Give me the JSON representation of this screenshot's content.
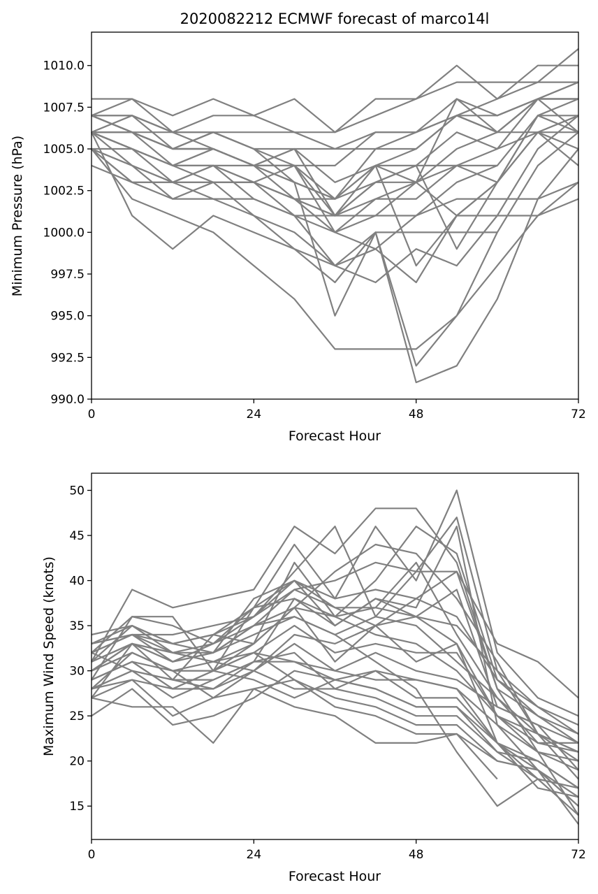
{
  "chart_data": [
    {
      "type": "line",
      "title": "2020082212 ECMWF forecast of marco14l",
      "xlabel": "Forecast Hour",
      "ylabel": "Minimum Pressure (hPa)",
      "xlim": [
        0,
        72
      ],
      "ylim": [
        990,
        1012
      ],
      "xticks": [
        0,
        24,
        48,
        72
      ],
      "xtick_labels": [
        "0",
        "24",
        "48",
        "72"
      ],
      "yticks": [
        990,
        992.5,
        995,
        997.5,
        1000,
        1002.5,
        1005,
        1007.5,
        1010
      ],
      "ytick_labels": [
        "990.0",
        "992.5",
        "995.0",
        "997.5",
        "1000.0",
        "1002.5",
        "1005.0",
        "1007.5",
        "1010.0"
      ],
      "line_color": "#808080",
      "grid": false,
      "x": [
        0,
        6,
        12,
        18,
        24,
        30,
        36,
        42,
        48,
        54,
        60,
        66,
        72
      ],
      "series": [
        {
          "values": [
            1006,
            1001,
            999,
            1001,
            1000,
            999,
            997,
            1000,
            991,
            992,
            996,
            1002,
            1005
          ]
        },
        {
          "values": [
            1005,
            1002,
            1001,
            1000,
            998,
            996,
            993,
            993,
            993,
            995,
            998,
            1001,
            1003
          ]
        },
        {
          "values": [
            1007,
            1007,
            1006,
            1006,
            1005,
            1003,
            995,
            1000,
            992,
            995,
            1000,
            1004,
            1006
          ]
        },
        {
          "values": [
            1008,
            1008,
            1007,
            1008,
            1007,
            1008,
            1006,
            1008,
            1008,
            1010,
            1008,
            1010,
            1010
          ]
        },
        {
          "values": [
            1007,
            1008,
            1006,
            1007,
            1007,
            1006,
            1006,
            1007,
            1008,
            1009,
            1009,
            1009,
            1011
          ]
        },
        {
          "values": [
            1006,
            1007,
            1005,
            1006,
            1005,
            1004,
            1004,
            1006,
            1006,
            1007,
            1008,
            1009,
            1009
          ]
        },
        {
          "values": [
            1005,
            1005,
            1004,
            1005,
            1004,
            1003,
            1002,
            1005,
            1005,
            1007,
            1006,
            1008,
            1009
          ]
        },
        {
          "values": [
            1004,
            1003,
            1003,
            1004,
            1003,
            1002,
            1001,
            1003,
            1004,
            1006,
            1005,
            1008,
            1008
          ]
        },
        {
          "values": [
            1006,
            1006,
            1004,
            1004,
            1002,
            1001,
            998,
            999,
            997,
            1001,
            1003,
            1007,
            1008
          ]
        },
        {
          "values": [
            1006,
            1005,
            1003,
            1003,
            1001,
            999,
            998,
            1000,
            1000,
            1000,
            1000,
            null,
            null
          ]
        },
        {
          "values": [
            1006,
            1004,
            1003,
            1002,
            1001,
            1000,
            998,
            997,
            999,
            998,
            1001,
            1005,
            1007
          ]
        },
        {
          "values": [
            1006,
            1005,
            1004,
            1003,
            1003,
            1001,
            1000,
            1002,
            1002,
            1004,
            1004,
            1007,
            1007
          ]
        },
        {
          "values": [
            1007,
            1006,
            1005,
            1005,
            1004,
            1002,
            1000,
            1001,
            1003,
            1005,
            1006,
            1006,
            1004
          ]
        },
        {
          "values": [
            1005,
            1003,
            1002,
            1003,
            1003,
            1002,
            1002,
            1004,
            1005,
            1007,
            1007,
            1008,
            1008
          ]
        },
        {
          "values": [
            1005,
            1004,
            1002,
            1002,
            1002,
            1001,
            1001,
            1002,
            1003,
            1004,
            1003,
            1006,
            1007
          ]
        },
        {
          "values": [
            1006,
            1006,
            1005,
            1006,
            1005,
            1005,
            1005,
            1006,
            1006,
            1007,
            1006,
            1008,
            1008
          ]
        },
        {
          "values": [
            1007,
            1007,
            1006,
            1005,
            1004,
            1005,
            1001,
            1004,
            998,
            1001,
            1003,
            1006,
            1005
          ]
        },
        {
          "values": [
            1005,
            1003,
            1003,
            1003,
            1003,
            1002,
            1001,
            1001,
            1001,
            1002,
            1002,
            1002,
            1003
          ]
        },
        {
          "values": [
            1006,
            1006,
            1005,
            1005,
            1004,
            1004,
            1002,
            1004,
            1003,
            1001,
            1001,
            1001,
            1002
          ]
        },
        {
          "values": [
            1006,
            1005,
            1004,
            1005,
            1004,
            1003,
            1002,
            1003,
            1004,
            1004,
            1005,
            1006,
            1006
          ]
        },
        {
          "values": [
            1007,
            1006,
            1006,
            1006,
            1006,
            1006,
            1005,
            1005,
            1006,
            1008,
            1007,
            1008,
            1009
          ]
        },
        {
          "values": [
            1006,
            1005,
            1004,
            1004,
            1004,
            1004,
            1000,
            999,
            1001,
            1003,
            1004,
            null,
            null
          ]
        },
        {
          "values": [
            1005,
            1004,
            1003,
            1004,
            1003,
            1004,
            1001,
            1003,
            1003,
            1008,
            1006,
            1008,
            1006
          ]
        },
        {
          "values": [
            1007,
            1006,
            1005,
            1005,
            1004,
            1005,
            1003,
            1004,
            1004,
            999,
            1003,
            1007,
            1006
          ]
        }
      ]
    },
    {
      "type": "line",
      "xlabel": "Forecast Hour",
      "ylabel": "Maximum Wind Speed (knots)",
      "xlim": [
        0,
        72
      ],
      "ylim": [
        11.3,
        51.9
      ],
      "xticks": [
        0,
        24,
        48,
        72
      ],
      "xtick_labels": [
        "0",
        "24",
        "48",
        "72"
      ],
      "yticks": [
        15,
        20,
        25,
        30,
        35,
        40,
        45,
        50
      ],
      "ytick_labels": [
        "15",
        "20",
        "25",
        "30",
        "35",
        "40",
        "45",
        "50"
      ],
      "line_color": "#808080",
      "grid": false,
      "x": [
        0,
        6,
        12,
        18,
        24,
        30,
        36,
        42,
        48,
        54,
        60,
        66,
        72
      ],
      "series": [
        {
          "values": [
            31,
            39,
            37,
            38,
            39,
            46,
            43,
            48,
            48,
            42,
            28,
            25,
            22
          ]
        },
        {
          "values": [
            30,
            33,
            32,
            33,
            36,
            41,
            46,
            36,
            41,
            47,
            30,
            23,
            18
          ]
        },
        {
          "values": [
            29,
            36,
            36,
            30,
            37,
            44,
            38,
            46,
            40,
            50,
            32,
            27,
            25
          ]
        },
        {
          "values": [
            27,
            33,
            31,
            32,
            38,
            40,
            35,
            38,
            37,
            46,
            24,
            19,
            16
          ]
        },
        {
          "values": [
            34,
            35,
            32,
            31,
            33,
            37,
            41,
            44,
            43,
            38,
            31,
            23,
            20
          ]
        },
        {
          "values": [
            28,
            32,
            30,
            27,
            30,
            34,
            33,
            35,
            36,
            39,
            26,
            24,
            19
          ]
        },
        {
          "values": [
            25,
            28,
            24,
            25,
            27,
            30,
            29,
            28,
            26,
            26,
            21,
            20,
            17
          ]
        },
        {
          "values": [
            27,
            26,
            26,
            22,
            28,
            26,
            25,
            22,
            22,
            23,
            20,
            19,
            15
          ]
        },
        {
          "values": [
            32,
            30,
            29,
            28,
            31,
            38,
            36,
            34,
            33,
            30,
            25,
            22,
            21
          ]
        },
        {
          "values": [
            29,
            31,
            28,
            30,
            29,
            27,
            29,
            30,
            29,
            28,
            24,
            21,
            20
          ]
        },
        {
          "values": [
            33,
            34,
            31,
            33,
            35,
            39,
            40,
            42,
            41,
            41,
            28,
            21,
            14
          ]
        },
        {
          "values": [
            31,
            33,
            29,
            34,
            33,
            37,
            31,
            35,
            31,
            33,
            22,
            18,
            17
          ]
        },
        {
          "values": [
            32,
            34,
            34,
            35,
            36,
            40,
            37,
            37,
            42,
            34,
            27,
            23,
            21
          ]
        },
        {
          "values": [
            30,
            32,
            30,
            31,
            30,
            33,
            30,
            32,
            30,
            29,
            26,
            24,
            22
          ]
        },
        {
          "values": [
            27,
            29,
            28,
            30,
            32,
            29,
            27,
            26,
            24,
            24,
            20,
            19,
            13
          ]
        },
        {
          "values": [
            33,
            35,
            33,
            32,
            35,
            36,
            34,
            36,
            35,
            31,
            27,
            22,
            22
          ]
        },
        {
          "values": [
            28,
            30,
            27,
            29,
            31,
            32,
            28,
            30,
            27,
            27,
            22,
            17,
            16
          ]
        },
        {
          "values": [
            32,
            36,
            35,
            33,
            37,
            38,
            35,
            38,
            36,
            35,
            30,
            26,
            24
          ]
        },
        {
          "values": [
            30,
            33,
            32,
            31,
            32,
            35,
            32,
            33,
            32,
            32,
            25,
            21,
            19
          ]
        },
        {
          "values": [
            29,
            31,
            30,
            30,
            33,
            42,
            36,
            40,
            46,
            43,
            29,
            25,
            23
          ]
        },
        {
          "values": [
            31,
            33,
            31,
            32,
            34,
            36,
            34,
            31,
            28,
            21,
            15,
            18,
            null
          ]
        },
        {
          "values": [
            28,
            29,
            25,
            27,
            28,
            29,
            26,
            25,
            23,
            23,
            18,
            null,
            null
          ]
        },
        {
          "values": [
            33,
            34,
            32,
            32,
            35,
            37,
            36,
            37,
            36,
            33,
            25,
            23,
            21
          ]
        },
        {
          "values": [
            30,
            32,
            30,
            30,
            32,
            31,
            30,
            29,
            29,
            28,
            22,
            19,
            15
          ]
        },
        {
          "values": [
            32,
            34,
            33,
            34,
            36,
            39,
            37,
            35,
            38,
            41,
            33,
            31,
            27
          ]
        },
        {
          "values": [
            29,
            31,
            28,
            28,
            30,
            28,
            28,
            27,
            25,
            25,
            21,
            18,
            14
          ]
        },
        {
          "values": [
            31,
            35,
            33,
            34,
            37,
            40,
            38,
            39,
            38,
            36,
            29,
            26,
            23
          ]
        },
        {
          "values": [
            28,
            30,
            29,
            29,
            31,
            31,
            29,
            28,
            26,
            26,
            22,
            20,
            17
          ]
        }
      ]
    }
  ]
}
